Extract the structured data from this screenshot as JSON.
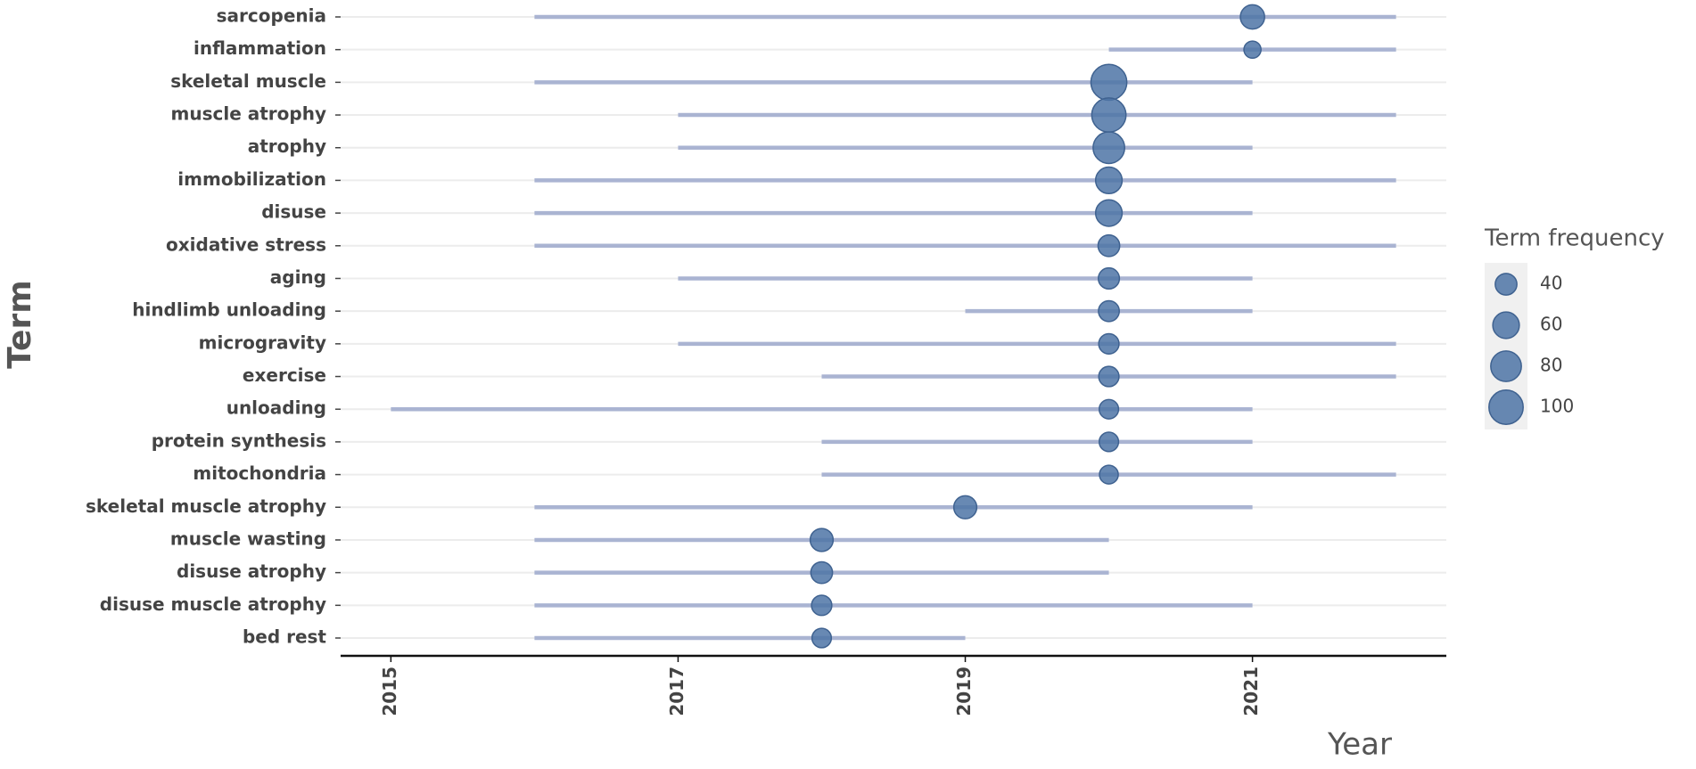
{
  "chart_data": {
    "type": "trend",
    "x_label": "Year",
    "y_label": "Term",
    "xlim": [
      2014.65,
      2022.35
    ],
    "xticks": [
      2015,
      2017,
      2019,
      2021
    ],
    "categories": [
      "sarcopenia",
      "inflammation",
      "skeletal muscle",
      "muscle atrophy",
      "atrophy",
      "immobilization",
      "disuse",
      "oxidative stress",
      "aging",
      "hindlimb unloading",
      "microgravity",
      "exercise",
      "unloading",
      "protein synthesis",
      "mitochondria",
      "skeletal muscle atrophy",
      "muscle wasting",
      "disuse atrophy",
      "disuse muscle atrophy",
      "bed rest"
    ],
    "start": [
      2016,
      2020,
      2016,
      2017,
      2017,
      2016,
      2016,
      2016,
      2017,
      2019,
      2017,
      2018,
      2015,
      2018,
      2018,
      2016,
      2016,
      2016,
      2016,
      2016
    ],
    "end": [
      2022,
      2022,
      2021,
      2022,
      2021,
      2022,
      2021,
      2022,
      2021,
      2021,
      2022,
      2022,
      2021,
      2021,
      2022,
      2021,
      2020,
      2020,
      2021,
      2019
    ],
    "peak": [
      2021,
      2021,
      2020,
      2020,
      2020,
      2020,
      2020,
      2020,
      2020,
      2020,
      2020,
      2020,
      2020,
      2020,
      2020,
      2019,
      2018,
      2018,
      2018,
      2018
    ],
    "frequency": [
      50,
      25,
      110,
      100,
      85,
      60,
      60,
      40,
      38,
      37,
      35,
      35,
      32,
      32,
      30,
      45,
      45,
      40,
      35,
      32
    ],
    "segment_color": "#aab4d2",
    "point_color": "#4e74a6",
    "grid": true,
    "size_legend": {
      "title": "Term frequency",
      "values": [
        40,
        60,
        80,
        100
      ]
    }
  }
}
